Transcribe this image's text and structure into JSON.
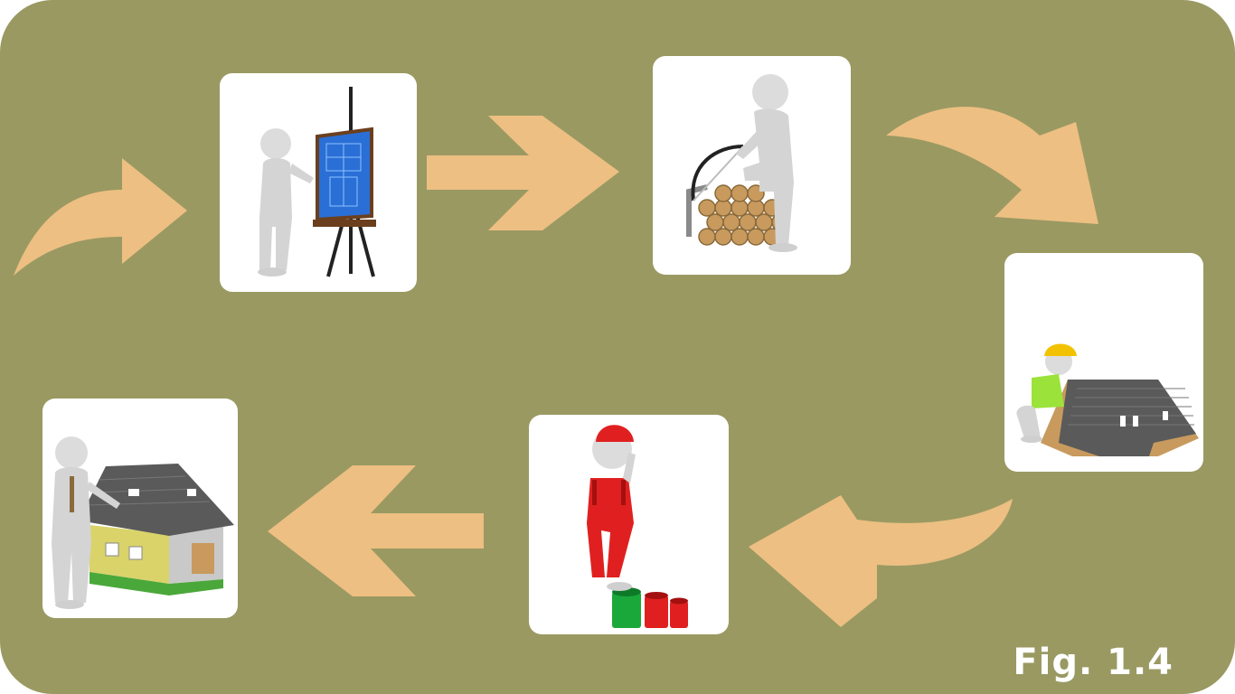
{
  "figure": {
    "label": "Fig. 1.4"
  },
  "colors": {
    "background": "#9a9962",
    "arrow": "#edbf82",
    "card": "#ffffff",
    "figure": "#dcdcdc",
    "blueprint": "#2a6fd6",
    "wood": "#c89a5e",
    "roof": "#5a5a5a",
    "helmet": "#f2c200",
    "vest": "#9be23a",
    "red": "#e02020",
    "green": "#1aa83a",
    "wall": "#d9d36a"
  },
  "steps": [
    {
      "id": "design",
      "icon": "blueprint-easel-icon"
    },
    {
      "id": "materials",
      "icon": "saw-logs-icon"
    },
    {
      "id": "roofing",
      "icon": "roof-builder-icon"
    },
    {
      "id": "painting",
      "icon": "painter-buckets-icon"
    },
    {
      "id": "completion",
      "icon": "finished-house-icon"
    }
  ]
}
